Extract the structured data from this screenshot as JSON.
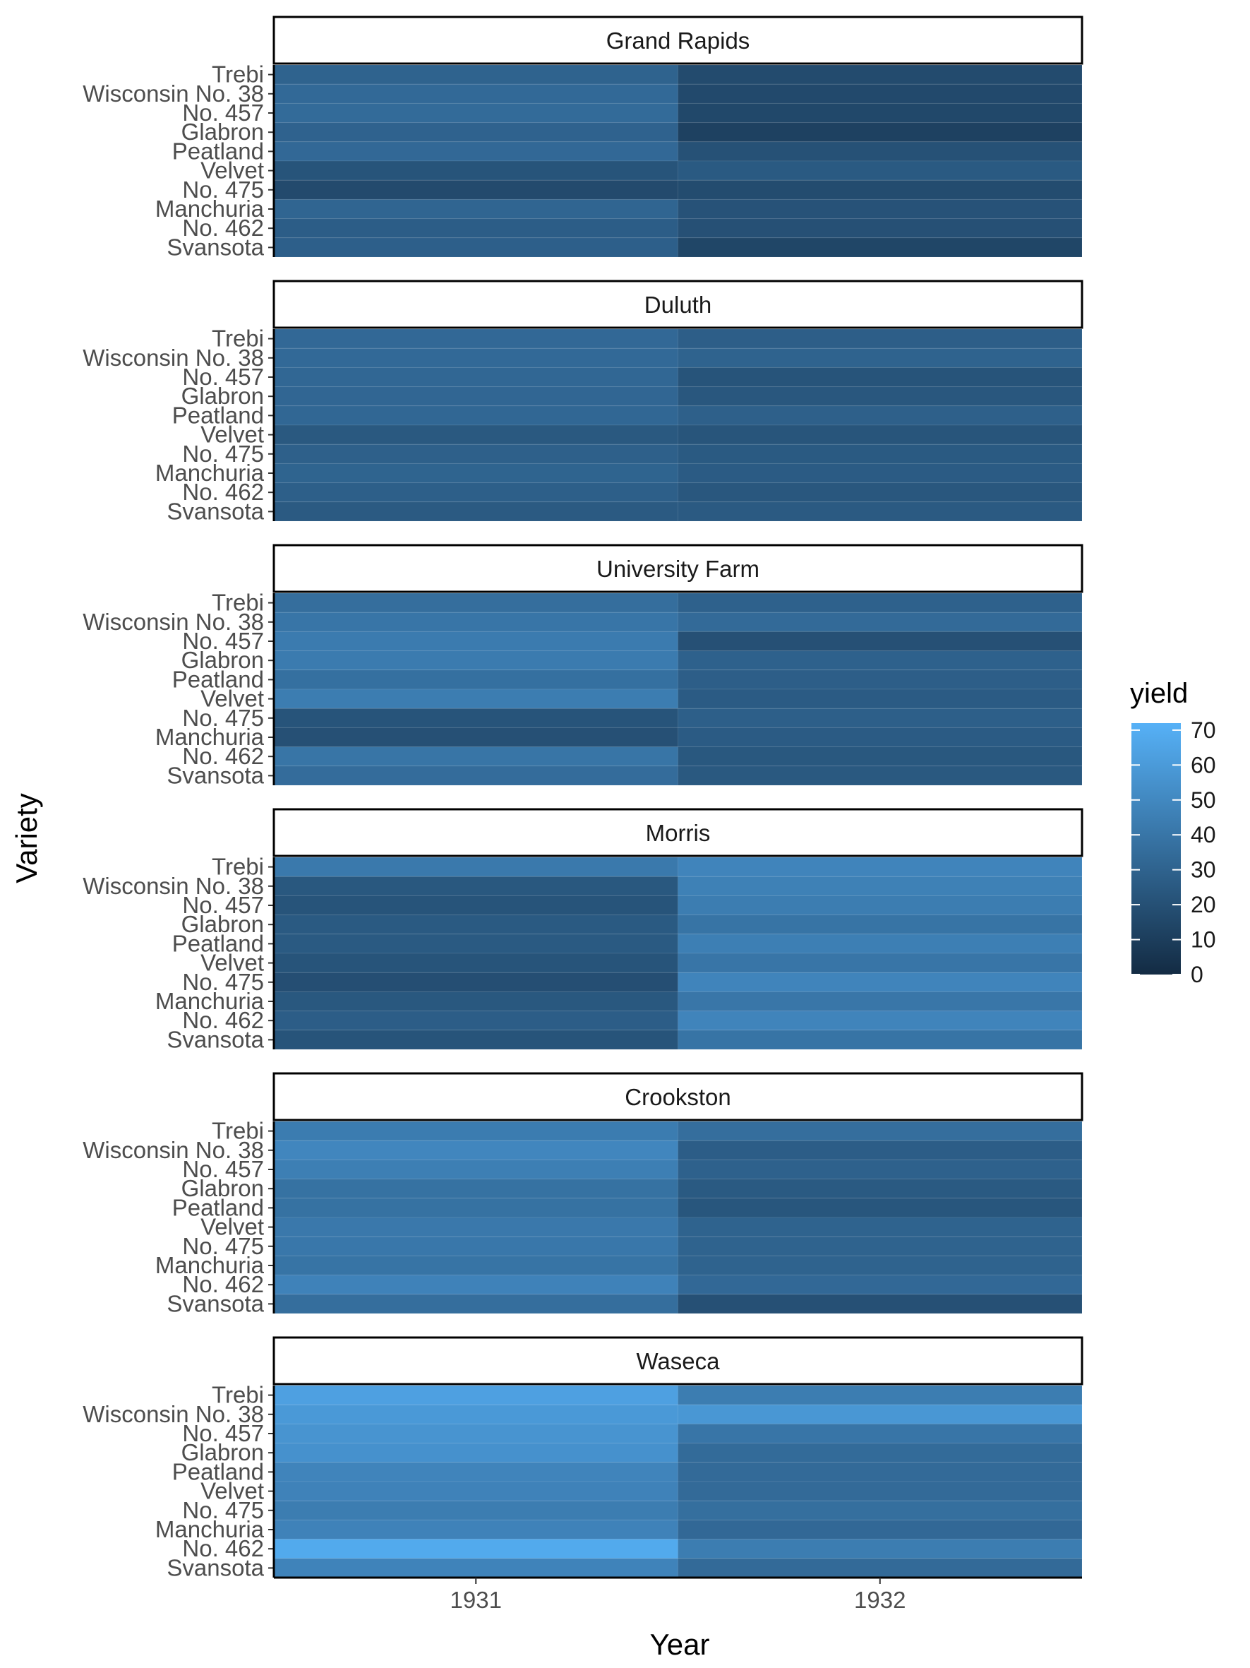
{
  "chart_data": {
    "type": "heatmap",
    "xlabel": "Year",
    "ylabel": "Variety",
    "x": [
      "1931",
      "1932"
    ],
    "varieties": [
      "Trebi",
      "Wisconsin No. 38",
      "No. 457",
      "Glabron",
      "Peatland",
      "Velvet",
      "No. 475",
      "Manchuria",
      "No. 462",
      "Svansota"
    ],
    "legend": {
      "title": "yield",
      "ticks": [
        0,
        10,
        20,
        30,
        40,
        50,
        60,
        70
      ],
      "range": [
        0,
        72
      ],
      "low_color": "#132B43",
      "high_color": "#56B1F7"
    },
    "facets": [
      {
        "name": "Grand Rapids",
        "values": [
          [
            30.0,
            17.2
          ],
          [
            33.5,
            16.2
          ],
          [
            34.5,
            15.4
          ],
          [
            29.8,
            11.8
          ],
          [
            33.0,
            20.5
          ],
          [
            22.0,
            25.0
          ],
          [
            16.7,
            17.5
          ],
          [
            31.0,
            21.0
          ],
          [
            27.0,
            20.0
          ],
          [
            28.2,
            14.4
          ]
        ]
      },
      {
        "name": "Duluth",
        "values": [
          [
            33.0,
            27.5
          ],
          [
            33.5,
            30.0
          ],
          [
            32.5,
            22.0
          ],
          [
            31.8,
            23.5
          ],
          [
            32.5,
            28.5
          ],
          [
            24.5,
            22.5
          ],
          [
            28.5,
            25.0
          ],
          [
            30.5,
            26.0
          ],
          [
            28.0,
            23.5
          ],
          [
            25.3,
            25.3
          ]
        ]
      },
      {
        "name": "University Farm",
        "values": [
          [
            36.0,
            29.0
          ],
          [
            39.9,
            34.0
          ],
          [
            43.0,
            20.0
          ],
          [
            43.0,
            29.0
          ],
          [
            37.0,
            27.5
          ],
          [
            44.0,
            26.0
          ],
          [
            22.0,
            28.0
          ],
          [
            20.0,
            26.0
          ],
          [
            39.5,
            24.0
          ],
          [
            35.0,
            24.5
          ]
        ]
      },
      {
        "name": "Morris",
        "values": [
          [
            42.0,
            48.0
          ],
          [
            24.0,
            46.0
          ],
          [
            22.0,
            44.0
          ],
          [
            25.0,
            39.0
          ],
          [
            25.0,
            45.0
          ],
          [
            22.0,
            40.0
          ],
          [
            19.0,
            48.0
          ],
          [
            24.0,
            40.5
          ],
          [
            27.0,
            48.0
          ],
          [
            22.0,
            39.0
          ]
        ]
      },
      {
        "name": "Crookston",
        "values": [
          [
            43.5,
            36.0
          ],
          [
            49.0,
            27.0
          ],
          [
            45.0,
            29.0
          ],
          [
            38.0,
            25.0
          ],
          [
            38.0,
            23.0
          ],
          [
            41.5,
            30.0
          ],
          [
            41.0,
            30.0
          ],
          [
            39.0,
            30.0
          ],
          [
            47.0,
            33.0
          ],
          [
            36.0,
            20.0
          ]
        ]
      },
      {
        "name": "Waseca",
        "values": [
          [
            63.0,
            44.0
          ],
          [
            59.0,
            58.0
          ],
          [
            56.5,
            40.0
          ],
          [
            55.0,
            34.5
          ],
          [
            48.0,
            34.0
          ],
          [
            47.0,
            34.0
          ],
          [
            44.0,
            36.5
          ],
          [
            47.0,
            33.0
          ],
          [
            68.0,
            44.0
          ],
          [
            47.5,
            34.0
          ]
        ]
      }
    ]
  }
}
